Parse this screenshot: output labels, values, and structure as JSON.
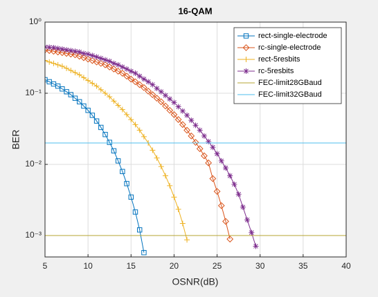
{
  "chart_data": {
    "type": "line",
    "title": "16-QAM",
    "x_label": "OSNR(dB)",
    "y_label": "BER",
    "xlim": [
      5,
      40
    ],
    "xticks": [
      5,
      10,
      15,
      20,
      25,
      30,
      35,
      40
    ],
    "ylim": [
      0.0005,
      1
    ],
    "y_scale": "log",
    "yticks": [
      {
        "value": 0.001,
        "label": "10⁻³"
      },
      {
        "value": 0.01,
        "label": "10⁻²"
      },
      {
        "value": 0.1,
        "label": "10⁻¹"
      },
      {
        "value": 1,
        "label": "10⁰"
      }
    ],
    "grid": true,
    "legend_position": "northeast",
    "series": [
      {
        "name": "rect-single-electrode",
        "color": "#0072BD",
        "marker": "square",
        "x": [
          5,
          5.5,
          6,
          6.5,
          7,
          7.5,
          8,
          8.5,
          9,
          9.5,
          10,
          10.5,
          11,
          11.5,
          12,
          12.5,
          13,
          13.5,
          14,
          14.5,
          15,
          15.5,
          16,
          16.5
        ],
        "values": [
          0.155,
          0.145,
          0.135,
          0.126,
          0.115,
          0.105,
          0.0955,
          0.0851,
          0.0759,
          0.0661,
          0.0575,
          0.049,
          0.0407,
          0.0331,
          0.0263,
          0.0204,
          0.0155,
          0.0112,
          0.00794,
          0.00537,
          0.00347,
          0.00214,
          0.0012,
          0.000575
        ]
      },
      {
        "name": "rc-single-electrode",
        "color": "#D95319",
        "marker": "diamond",
        "x": [
          5,
          5.5,
          6,
          6.5,
          7,
          7.5,
          8,
          8.5,
          9,
          9.5,
          10,
          10.5,
          11,
          11.5,
          12,
          12.5,
          13,
          13.5,
          14,
          14.5,
          15,
          15.5,
          16,
          16.5,
          17,
          17.5,
          18,
          18.5,
          19,
          19.5,
          20,
          20.5,
          21,
          21.5,
          22,
          22.5,
          23,
          23.5,
          24,
          24.5,
          25,
          25.5,
          26,
          26.5
        ],
        "values": [
          0.407,
          0.398,
          0.389,
          0.38,
          0.372,
          0.363,
          0.355,
          0.347,
          0.331,
          0.316,
          0.302,
          0.288,
          0.275,
          0.263,
          0.251,
          0.234,
          0.219,
          0.204,
          0.191,
          0.174,
          0.158,
          0.145,
          0.132,
          0.12,
          0.107,
          0.0955,
          0.0851,
          0.0759,
          0.0661,
          0.0575,
          0.0501,
          0.0427,
          0.0363,
          0.0302,
          0.0251,
          0.0204,
          0.0166,
          0.0132,
          0.0105,
          0.00631,
          0.00417,
          0.00263,
          0.00158,
          0.000891
        ]
      },
      {
        "name": "rect-5resbits",
        "color": "#EDB120",
        "marker": "plus",
        "x": [
          5,
          5.5,
          6,
          6.5,
          7,
          7.5,
          8,
          8.5,
          9,
          9.5,
          10,
          10.5,
          11,
          11.5,
          12,
          12.5,
          13,
          13.5,
          14,
          14.5,
          15,
          15.5,
          16,
          16.5,
          17,
          17.5,
          18,
          18.5,
          19,
          19.5,
          20,
          20.5,
          21,
          21.5
        ],
        "values": [
          0.288,
          0.275,
          0.263,
          0.251,
          0.24,
          0.224,
          0.209,
          0.195,
          0.182,
          0.166,
          0.151,
          0.138,
          0.126,
          0.112,
          0.1,
          0.0891,
          0.0776,
          0.0676,
          0.0589,
          0.0501,
          0.0427,
          0.0363,
          0.0302,
          0.0245,
          0.02,
          0.0158,
          0.0123,
          0.00933,
          0.00692,
          0.00501,
          0.00347,
          0.00234,
          0.00148,
          0.00087
        ]
      },
      {
        "name": "rc-5resbits",
        "color": "#7E2F8E",
        "marker": "asterisk",
        "x": [
          5,
          5.5,
          6,
          6.5,
          7,
          7.5,
          8,
          8.5,
          9,
          9.5,
          10,
          10.5,
          11,
          11.5,
          12,
          12.5,
          13,
          13.5,
          14,
          14.5,
          15,
          15.5,
          16,
          16.5,
          17,
          17.5,
          18,
          18.5,
          19,
          19.5,
          20,
          20.5,
          21,
          21.5,
          22,
          22.5,
          23,
          23.5,
          24,
          24.5,
          25,
          25.5,
          26,
          26.5,
          27,
          27.5,
          28,
          28.5,
          29,
          29.5
        ],
        "values": [
          0.447,
          0.442,
          0.437,
          0.427,
          0.417,
          0.407,
          0.398,
          0.389,
          0.38,
          0.363,
          0.355,
          0.339,
          0.324,
          0.309,
          0.295,
          0.282,
          0.263,
          0.251,
          0.234,
          0.219,
          0.204,
          0.191,
          0.174,
          0.158,
          0.145,
          0.132,
          0.117,
          0.105,
          0.0933,
          0.0832,
          0.0741,
          0.0646,
          0.0562,
          0.049,
          0.0417,
          0.0355,
          0.0302,
          0.0251,
          0.0209,
          0.0174,
          0.0141,
          0.0112,
          0.00891,
          0.00692,
          0.00525,
          0.0038,
          0.00251,
          0.00166,
          0.0011,
          0.000708
        ]
      },
      {
        "name": "FEC-limit28GBaud",
        "color": "#B5A431",
        "marker": "none",
        "x": [
          5,
          40
        ],
        "values": [
          0.001,
          0.001
        ]
      },
      {
        "name": "FEC-limit32GBaud",
        "color": "#4DBEEE",
        "marker": "none",
        "x": [
          5,
          40
        ],
        "values": [
          0.02,
          0.02
        ]
      }
    ]
  }
}
